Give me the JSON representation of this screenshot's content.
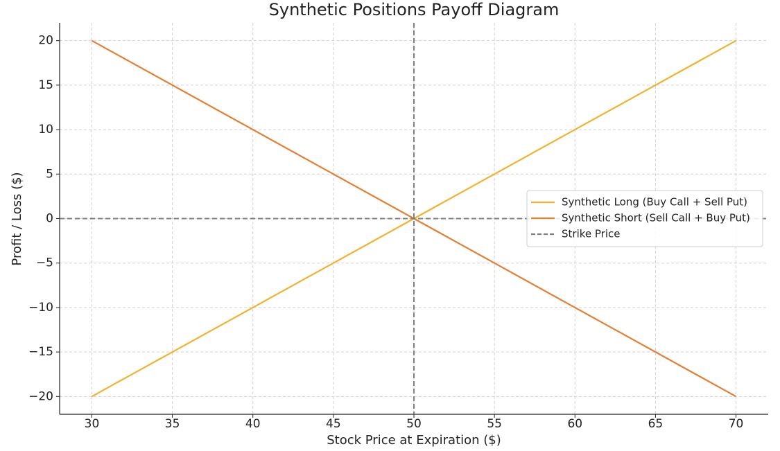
{
  "chart_data": {
    "type": "line",
    "title": "Synthetic Positions Payoff Diagram",
    "x_label": "Stock Price at Expiration ($)",
    "y_label": "Profit / Loss ($)",
    "x": [
      30,
      70
    ],
    "series": [
      {
        "name": "Synthetic Long (Buy Call + Sell Put)",
        "color": "#f2b22c",
        "values": [
          -20,
          20
        ]
      },
      {
        "name": "Synthetic Short (Sell Call + Buy Put)",
        "color": "#e67e30",
        "values": [
          20,
          -20
        ]
      }
    ],
    "vline": {
      "name": "Strike Price",
      "x": 50,
      "color": "#7f7f7f"
    },
    "hline": 0,
    "xlim": [
      28,
      72
    ],
    "xticks": [
      30,
      35,
      40,
      45,
      50,
      55,
      60,
      65,
      70
    ],
    "ylim": [
      -22,
      22
    ],
    "yticks": [
      {
        "value": -20,
        "label": "−20"
      },
      {
        "value": -15,
        "label": "−15"
      },
      {
        "value": -10,
        "label": "−10"
      },
      {
        "value": -5,
        "label": "−5"
      },
      0,
      5,
      10,
      15,
      20
    ],
    "grid": true,
    "legend": "center right"
  }
}
